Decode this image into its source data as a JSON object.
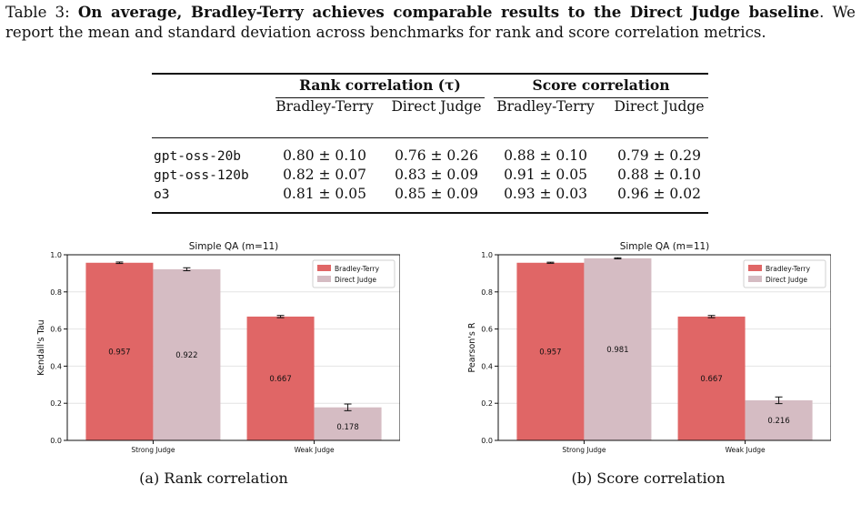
{
  "caption": {
    "label": "Table 3: ",
    "bold": "On average, Bradley-Terry achieves comparable results to the Direct Judge baseline",
    "rest": ". We report the mean and standard deviation across benchmarks for rank and score correlation metrics."
  },
  "table": {
    "group_headers": [
      "Rank correlation (τ)",
      "Score correlation"
    ],
    "sub_headers": [
      "Bradley-Terry",
      "Direct Judge",
      "Bradley-Terry",
      "Direct Judge"
    ],
    "rows": [
      {
        "model": "gpt-oss-20b",
        "cells": [
          "0.80 ± 0.10",
          "0.76 ± 0.26",
          "0.88 ± 0.10",
          "0.79 ± 0.29"
        ]
      },
      {
        "model": "gpt-oss-120b",
        "cells": [
          "0.82 ± 0.07",
          "0.83 ± 0.09",
          "0.91 ± 0.05",
          "0.88 ± 0.10"
        ]
      },
      {
        "model": "o3",
        "cells": [
          "0.81 ± 0.05",
          "0.85 ± 0.09",
          "0.93 ± 0.03",
          "0.96 ± 0.02"
        ]
      }
    ]
  },
  "chart_data": [
    {
      "type": "bar",
      "title": "Simple QA (m=11)",
      "ylabel": "Kendall's Tau",
      "xlabel": "",
      "categories": [
        "Strong Judge",
        "Weak Judge"
      ],
      "series": [
        {
          "name": "Bradley-Terry",
          "values": [
            0.957,
            0.667
          ],
          "errors": [
            0.004,
            0.006
          ],
          "labels": [
            "0.957",
            "0.667"
          ]
        },
        {
          "name": "Direct Judge",
          "values": [
            0.922,
            0.178
          ],
          "errors": [
            0.008,
            0.018
          ],
          "labels": [
            "0.922",
            "0.178"
          ]
        }
      ],
      "ylim": [
        0,
        1.0
      ],
      "yticks": [
        "0.0",
        "0.2",
        "0.4",
        "0.6",
        "0.8",
        "1.0"
      ],
      "grid": true,
      "legend": "top-right",
      "colors": [
        "#e06666",
        "#d5bcc3"
      ],
      "subcaption": "(a) Rank correlation"
    },
    {
      "type": "bar",
      "title": "Simple QA (m=11)",
      "ylabel": "Pearson's R",
      "xlabel": "",
      "categories": [
        "Strong Judge",
        "Weak Judge"
      ],
      "series": [
        {
          "name": "Bradley-Terry",
          "values": [
            0.957,
            0.667
          ],
          "errors": [
            0.003,
            0.006
          ],
          "labels": [
            "0.957",
            "0.667"
          ]
        },
        {
          "name": "Direct Judge",
          "values": [
            0.981,
            0.216
          ],
          "errors": [
            0.003,
            0.018
          ],
          "labels": [
            "0.981",
            "0.216"
          ]
        }
      ],
      "ylim": [
        0,
        1.0
      ],
      "yticks": [
        "0.0",
        "0.2",
        "0.4",
        "0.6",
        "0.8",
        "1.0"
      ],
      "grid": true,
      "legend": "top-right",
      "colors": [
        "#e06666",
        "#d5bcc3"
      ],
      "subcaption": "(b) Score correlation"
    }
  ]
}
